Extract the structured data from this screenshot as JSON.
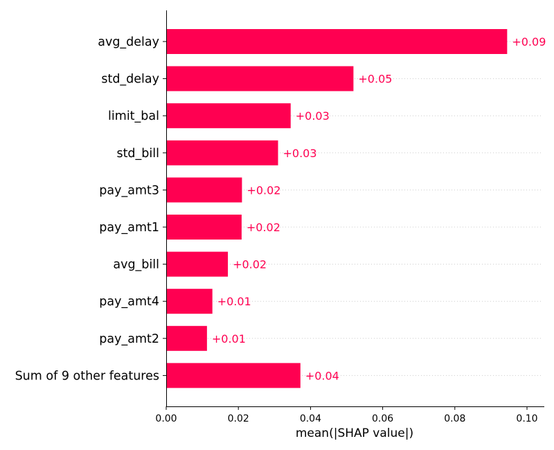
{
  "chart_data": {
    "type": "bar",
    "orientation": "horizontal",
    "title": "",
    "xlabel": "mean(|SHAP value|)",
    "ylabel": "",
    "xlim": [
      0.0,
      0.105
    ],
    "xticks": [
      0.0,
      0.02,
      0.04,
      0.06,
      0.08,
      0.1
    ],
    "xtick_labels": [
      "0.00",
      "0.02",
      "0.04",
      "0.06",
      "0.08",
      "0.10"
    ],
    "grid": "dotted-horizontal",
    "bar_color": "#ff0051",
    "label_color": "#ff0051",
    "categories": [
      "avg_delay",
      "std_delay",
      "limit_bal",
      "std_bill",
      "pay_amt3",
      "pay_amt1",
      "avg_bill",
      "pay_amt4",
      "pay_amt2",
      "Sum of 9 other features"
    ],
    "values": [
      0.0945,
      0.0519,
      0.0345,
      0.031,
      0.021,
      0.0209,
      0.0171,
      0.0128,
      0.0113,
      0.0372
    ],
    "value_labels": [
      "+0.09",
      "+0.05",
      "+0.03",
      "+0.03",
      "+0.02",
      "+0.02",
      "+0.02",
      "+0.01",
      "+0.01",
      "+0.04"
    ]
  }
}
